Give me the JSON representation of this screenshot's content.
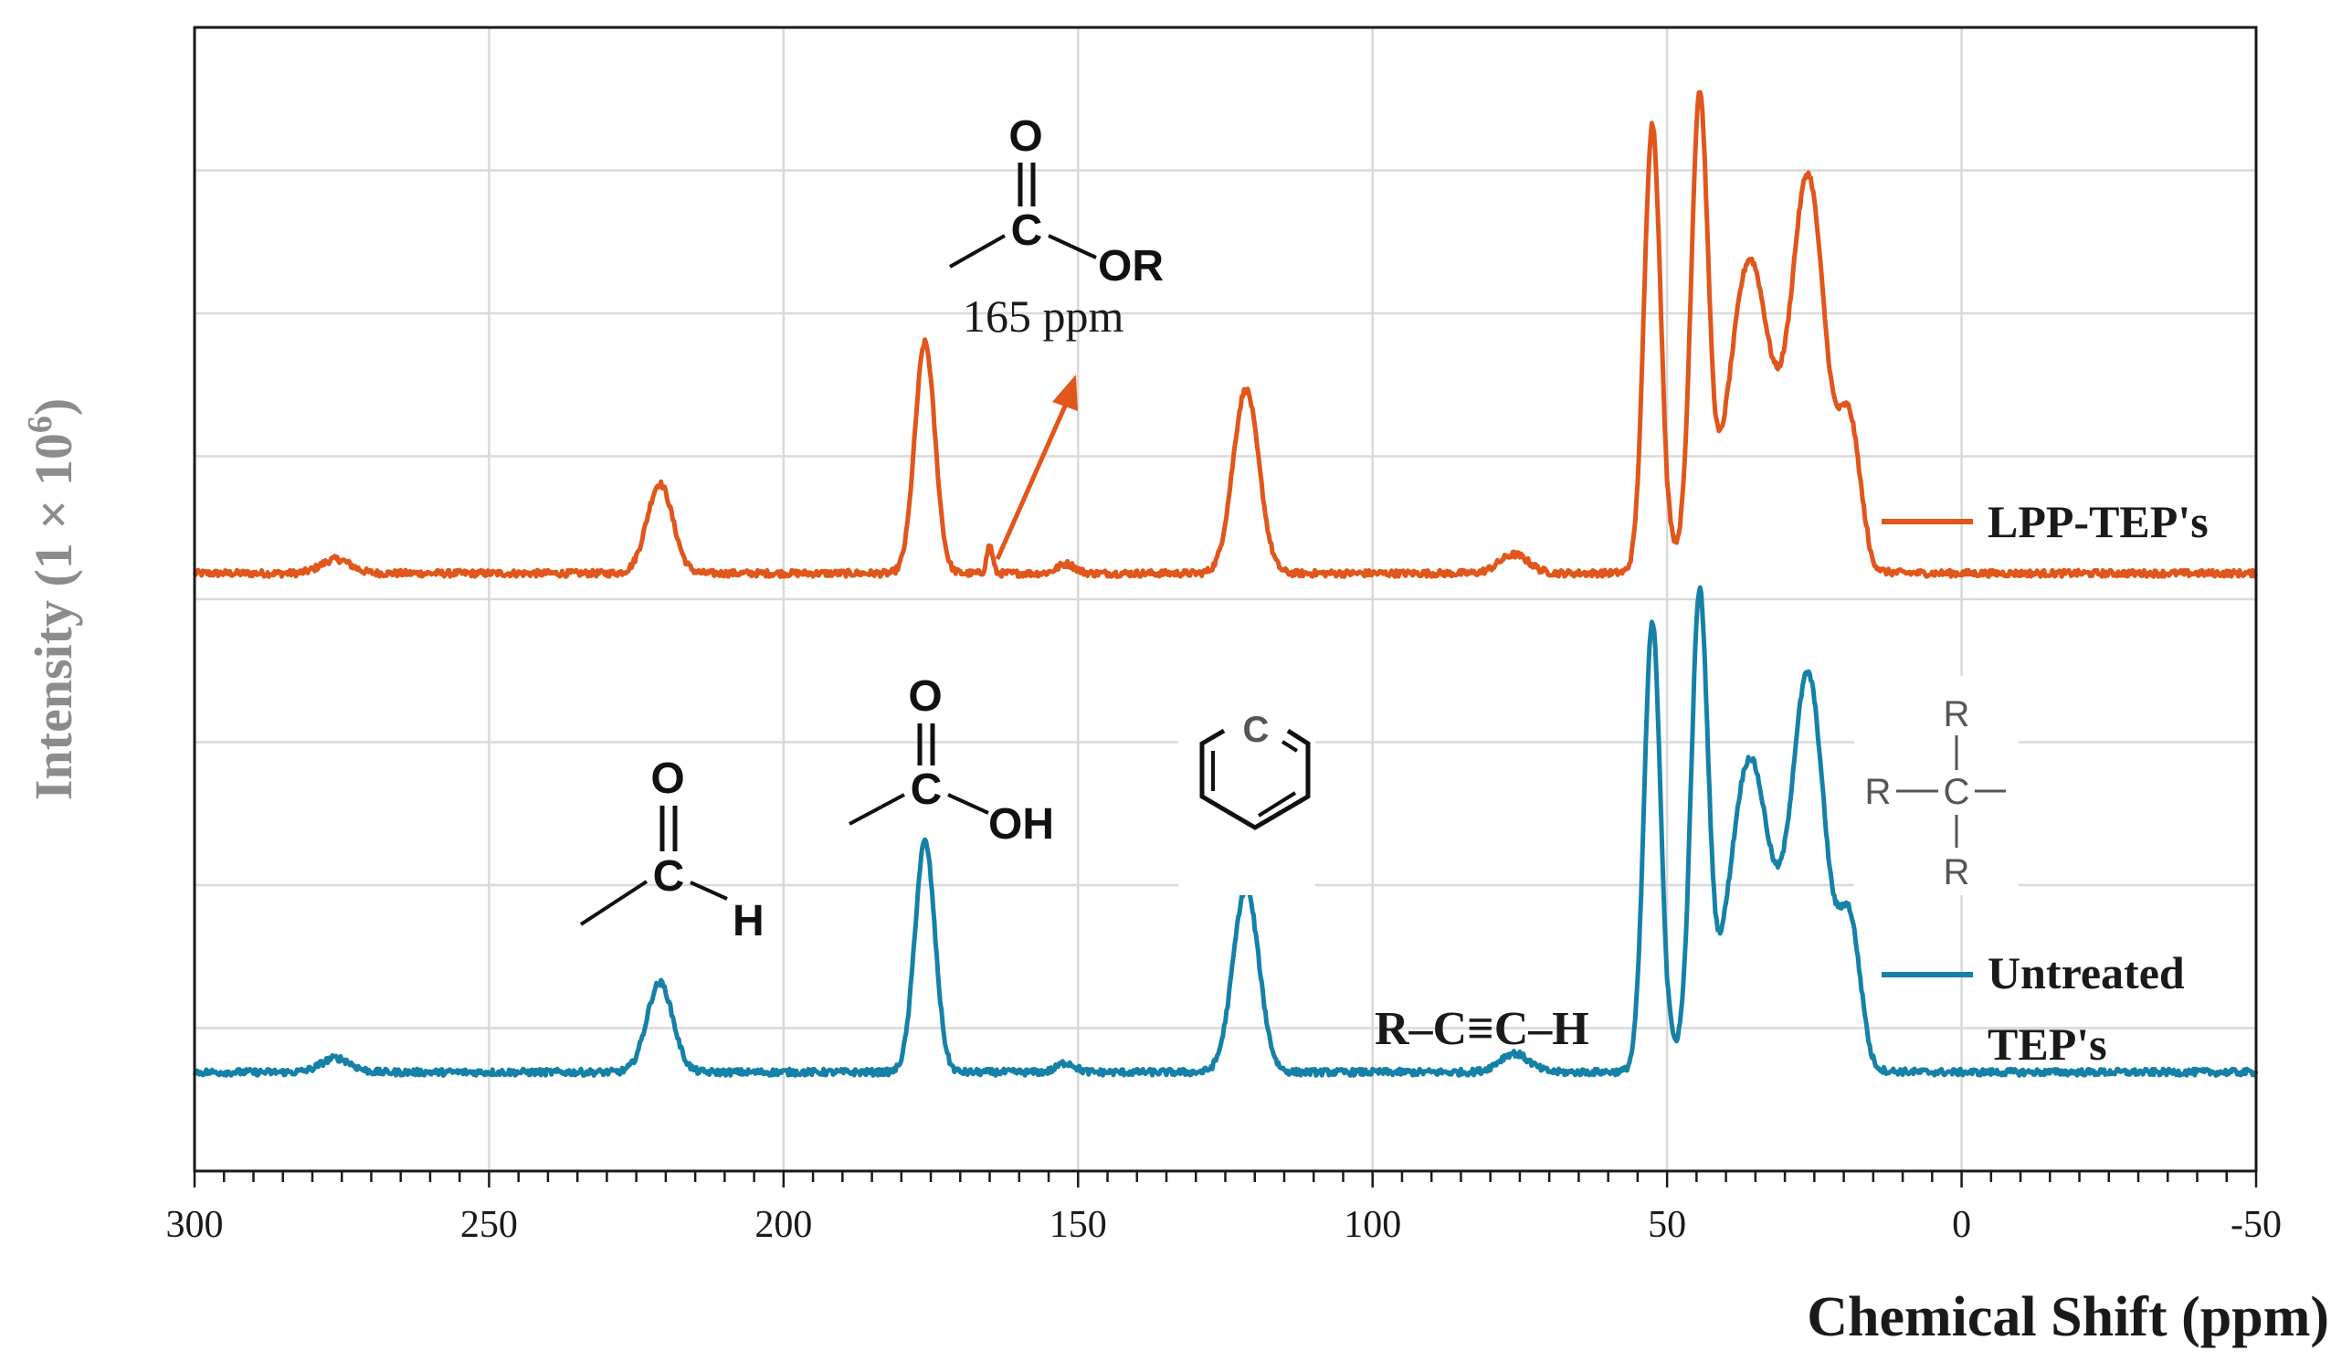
{
  "chart_data": {
    "type": "line",
    "xlabel": "Chemical Shift (ppm)",
    "ylabel": "Intensity (1 × 10",
    "ylabel_sup": "6",
    "ylabel_close": ")",
    "xlim": [
      300,
      -50
    ],
    "x_reversed": true,
    "x_ticks": [
      300,
      250,
      200,
      150,
      100,
      50,
      0,
      -50
    ],
    "x_tick_labels": [
      "300",
      "250",
      "200",
      "150",
      "100",
      "50",
      "0",
      "-50"
    ],
    "grid": true,
    "legend_position": "right",
    "series": [
      {
        "name": "LPP-TEP's",
        "color": "#e0561b",
        "offset": 0,
        "baseline": 0,
        "peaks": [
          {
            "x": 276,
            "height": 0.3,
            "width": 2.5
          },
          {
            "x": 221,
            "height": 1.9,
            "width": 2.2
          },
          {
            "x": 176,
            "height": 4.9,
            "width": 1.7
          },
          {
            "x": 165,
            "height": 0.6,
            "width": 0.5
          },
          {
            "x": 152,
            "height": 0.2,
            "width": 1.5
          },
          {
            "x": 121.5,
            "height": 3.9,
            "width": 2.2
          },
          {
            "x": 76,
            "height": 0.4,
            "width": 2.5
          },
          {
            "x": 52.5,
            "height": 9.5,
            "width": 1.4
          },
          {
            "x": 44.5,
            "height": 9.4,
            "width": 1.4
          },
          {
            "x": 36,
            "height": 5.3,
            "width": 3.2
          },
          {
            "x": 26,
            "height": 7.5,
            "width": 2.8
          },
          {
            "x": 19,
            "height": 2.8,
            "width": 1.8
          }
        ]
      },
      {
        "name": "Untreated TEP's",
        "name_lines": [
          "Untreated",
          "TEP's"
        ],
        "color": "#1581a6",
        "offset": -10.6,
        "baseline": 0,
        "peaks": [
          {
            "x": 276,
            "height": 0.3,
            "width": 2.5
          },
          {
            "x": 221,
            "height": 1.9,
            "width": 2.2
          },
          {
            "x": 176,
            "height": 4.9,
            "width": 1.7
          },
          {
            "x": 152,
            "height": 0.2,
            "width": 1.5
          },
          {
            "x": 121.5,
            "height": 3.9,
            "width": 2.2
          },
          {
            "x": 76,
            "height": 0.4,
            "width": 2.5
          },
          {
            "x": 52.5,
            "height": 9.5,
            "width": 1.4
          },
          {
            "x": 44.5,
            "height": 9.4,
            "width": 1.4
          },
          {
            "x": 36,
            "height": 5.3,
            "width": 3.2
          },
          {
            "x": 26,
            "height": 7.5,
            "width": 2.8
          },
          {
            "x": 19,
            "height": 2.8,
            "width": 1.8
          }
        ]
      }
    ],
    "annotations": {
      "ester_label": "165 ppm",
      "ester_or": "OR",
      "ester_o": "O",
      "ester_c": "C",
      "acid_oh": "OH",
      "acid_o": "O",
      "acid_c": "C",
      "aldehyde_h": "H",
      "aldehyde_o": "O",
      "aldehyde_c": "C",
      "aromatic_c": "C",
      "alkyne": "R–C≡C–H",
      "alkyl_r_top": "R",
      "alkyl_r_left": "R",
      "alkyl_r_bottom": "R",
      "alkyl_c": "C"
    },
    "arrow_color": "#e0561b"
  }
}
